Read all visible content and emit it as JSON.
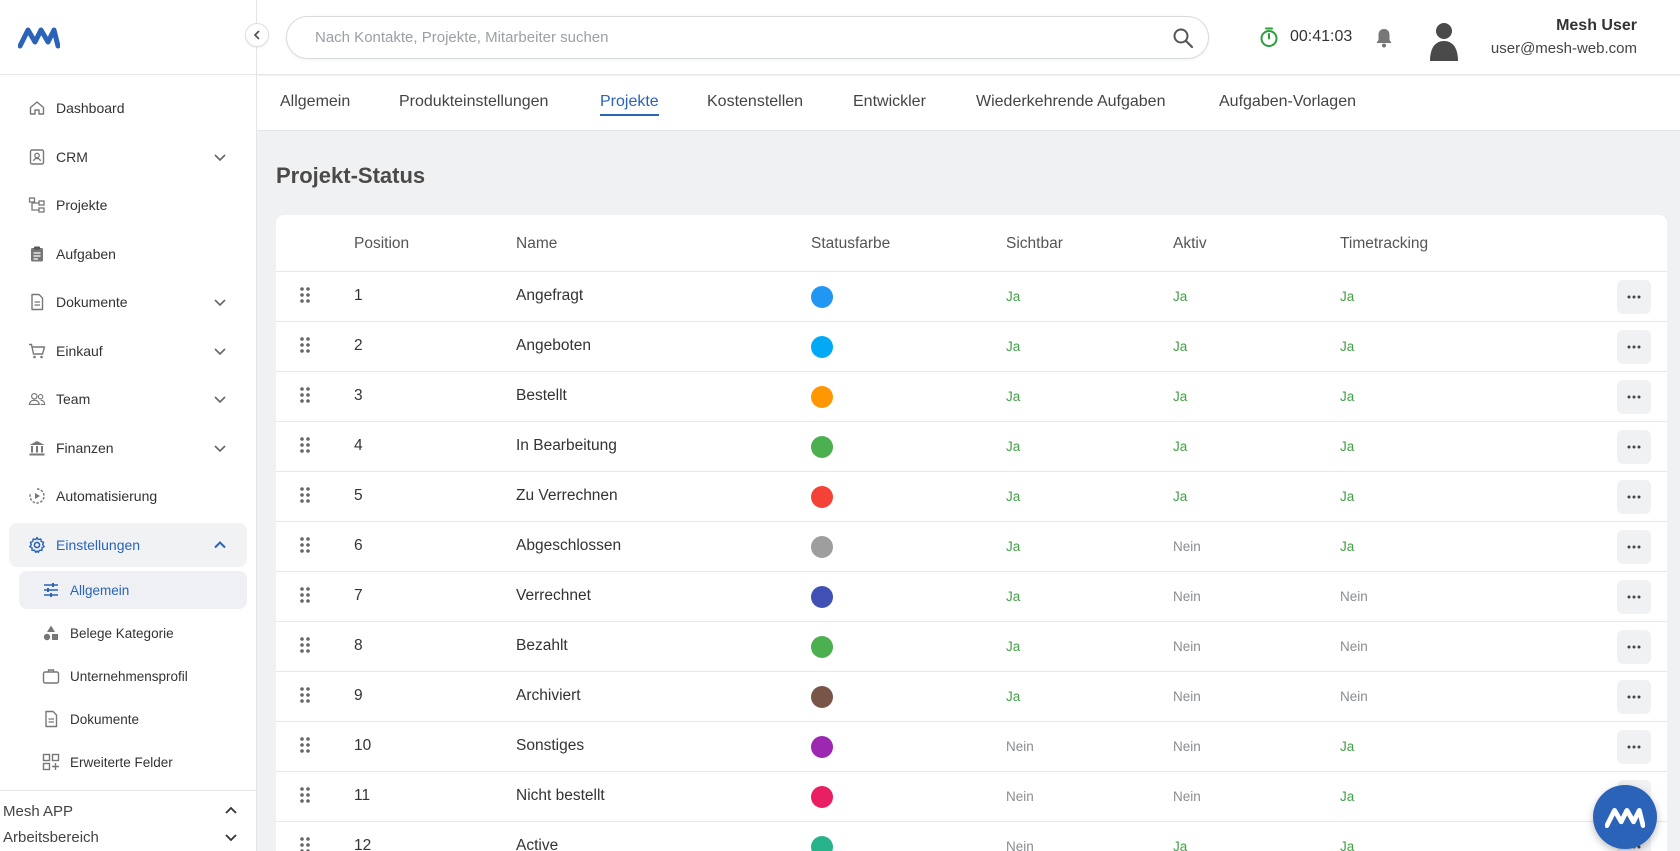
{
  "sidebar": {
    "nav": [
      {
        "label": "Dashboard",
        "icon": "home-icon",
        "expandable": false
      },
      {
        "label": "CRM",
        "icon": "contact-card-icon",
        "expandable": true
      },
      {
        "label": "Projekte",
        "icon": "project-tree-icon",
        "expandable": false
      },
      {
        "label": "Aufgaben",
        "icon": "clipboard-icon",
        "expandable": false
      },
      {
        "label": "Dokumente",
        "icon": "document-icon",
        "expandable": true
      },
      {
        "label": "Einkauf",
        "icon": "cart-icon",
        "expandable": true
      },
      {
        "label": "Team",
        "icon": "team-icon",
        "expandable": true
      },
      {
        "label": "Finanzen",
        "icon": "bank-icon",
        "expandable": true
      },
      {
        "label": "Automatisierung",
        "icon": "automation-icon",
        "expandable": false
      },
      {
        "label": "Einstellungen",
        "icon": "gear-icon",
        "expandable": true,
        "expanded": true,
        "active": true
      }
    ],
    "sub_nav": [
      {
        "label": "Allgemein",
        "icon": "sliders-icon",
        "active": true
      },
      {
        "label": "Belege Kategorie",
        "icon": "shapes-icon",
        "active": false
      },
      {
        "label": "Unternehmensprofil",
        "icon": "briefcase-icon",
        "active": false
      },
      {
        "label": "Dokumente",
        "icon": "document-icon",
        "active": false
      },
      {
        "label": "Erweiterte Felder",
        "icon": "grid-plus-icon",
        "active": false
      }
    ],
    "footer": {
      "app_label": "Mesh APP",
      "workspace_label": "Arbeitsbereich"
    }
  },
  "header": {
    "search_placeholder": "Nach Kontakte, Projekte, Mitarbeiter suchen",
    "timer": "00:41:03",
    "user_name": "Mesh User",
    "user_email": "user@mesh-web.com"
  },
  "tabs": [
    {
      "label": "Allgemein",
      "active": false
    },
    {
      "label": "Produkteinstellungen",
      "active": false
    },
    {
      "label": "Projekte",
      "active": true
    },
    {
      "label": "Kostenstellen",
      "active": false
    },
    {
      "label": "Entwickler",
      "active": false
    },
    {
      "label": "Wiederkehrende Aufgaben",
      "active": false
    },
    {
      "label": "Aufgaben-Vorlagen",
      "active": false
    }
  ],
  "page_title": "Projekt-Status",
  "table": {
    "columns": [
      "Position",
      "Name",
      "Statusfarbe",
      "Sichtbar",
      "Aktiv",
      "Timetracking"
    ],
    "rows": [
      {
        "position": "1",
        "name": "Angefragt",
        "color": "#2196f3",
        "sichtbar": "Ja",
        "aktiv": "Ja",
        "timetracking": "Ja"
      },
      {
        "position": "2",
        "name": "Angeboten",
        "color": "#03a9f4",
        "sichtbar": "Ja",
        "aktiv": "Ja",
        "timetracking": "Ja"
      },
      {
        "position": "3",
        "name": "Bestellt",
        "color": "#ff9800",
        "sichtbar": "Ja",
        "aktiv": "Ja",
        "timetracking": "Ja"
      },
      {
        "position": "4",
        "name": "In Bearbeitung",
        "color": "#4caf50",
        "sichtbar": "Ja",
        "aktiv": "Ja",
        "timetracking": "Ja"
      },
      {
        "position": "5",
        "name": "Zu Verrechnen",
        "color": "#f44336",
        "sichtbar": "Ja",
        "aktiv": "Ja",
        "timetracking": "Ja"
      },
      {
        "position": "6",
        "name": "Abgeschlossen",
        "color": "#9e9e9e",
        "sichtbar": "Ja",
        "aktiv": "Nein",
        "timetracking": "Ja"
      },
      {
        "position": "7",
        "name": "Verrechnet",
        "color": "#3f51b5",
        "sichtbar": "Ja",
        "aktiv": "Nein",
        "timetracking": "Nein"
      },
      {
        "position": "8",
        "name": "Bezahlt",
        "color": "#4caf50",
        "sichtbar": "Ja",
        "aktiv": "Nein",
        "timetracking": "Nein"
      },
      {
        "position": "9",
        "name": "Archiviert",
        "color": "#795548",
        "sichtbar": "Ja",
        "aktiv": "Nein",
        "timetracking": "Nein"
      },
      {
        "position": "10",
        "name": "Sonstiges",
        "color": "#9c27b0",
        "sichtbar": "Nein",
        "aktiv": "Nein",
        "timetracking": "Ja"
      },
      {
        "position": "11",
        "name": "Nicht bestellt",
        "color": "#e91e63",
        "sichtbar": "Nein",
        "aktiv": "Nein",
        "timetracking": "Ja"
      },
      {
        "position": "12",
        "name": "Active",
        "color": "#26b38a",
        "sichtbar": "Nein",
        "aktiv": "Ja",
        "timetracking": "Ja"
      }
    ]
  },
  "colors": {
    "accent": "#2a63b8",
    "yes": "#43a047",
    "no": "#8a8d90",
    "timer_icon": "#2e9e3e"
  }
}
